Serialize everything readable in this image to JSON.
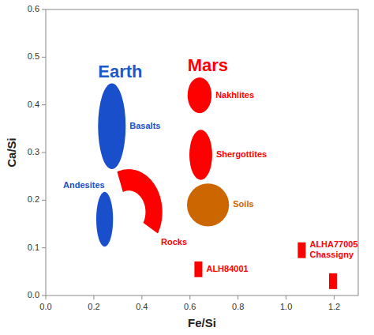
{
  "chart_data": {
    "type": "scatter",
    "xlabel": "Fe/Si",
    "ylabel": "Ca/Si",
    "xlim": [
      0.0,
      1.3
    ],
    "ylim": [
      0.0,
      0.6
    ],
    "xticks": [
      {
        "value": 0.0,
        "label": "0.0"
      },
      0.2,
      0.4,
      0.6,
      0.8,
      {
        "value": 1.0,
        "label": "1.0"
      },
      1.2
    ],
    "yticks": [
      {
        "value": 0.0,
        "label": "0.0"
      },
      0.1,
      0.2,
      0.3,
      0.4,
      0.5,
      0.6
    ],
    "grid": false,
    "annotations": [
      {
        "text": "Earth",
        "color": "#1a5bcc"
      },
      {
        "text": "Mars",
        "color": "red"
      }
    ],
    "regions": [
      {
        "name": "Basalts",
        "group": "Earth",
        "shape": "ellipse",
        "cx": 0.275,
        "cy": 0.355,
        "width": 0.115,
        "height": 0.18,
        "color": "#1a4fcc"
      },
      {
        "name": "Andesites",
        "group": "Earth",
        "shape": "ellipse",
        "cx": 0.245,
        "cy": 0.16,
        "width": 0.07,
        "height": 0.115,
        "color": "#1a4fcc"
      },
      {
        "name": "Nakhlites",
        "group": "Mars",
        "shape": "ellipse",
        "cx": 0.64,
        "cy": 0.42,
        "width": 0.1,
        "height": 0.075,
        "color": "red"
      },
      {
        "name": "Shergottites",
        "group": "Mars",
        "shape": "ellipse",
        "cx": 0.645,
        "cy": 0.295,
        "width": 0.095,
        "height": 0.105,
        "color": "red"
      },
      {
        "name": "Soils",
        "group": "Mars",
        "shape": "ellipse",
        "cx": 0.675,
        "cy": 0.19,
        "width": 0.175,
        "height": 0.09,
        "color": "#cc6600"
      },
      {
        "name": "Rocks",
        "group": "Mars",
        "shape": "arc",
        "cx": 0.345,
        "cy": 0.175,
        "outer_r_x": 0.14,
        "outer_r_y": 0.09,
        "inner_r_x": 0.07,
        "inner_r_y": 0.045,
        "theta1": -30,
        "theta2": 110,
        "color": "red"
      }
    ],
    "points": [
      {
        "label": "ALH84001",
        "x": 0.635,
        "y": 0.055,
        "size": 0.033,
        "color": "red"
      },
      {
        "label": "ALHA77005\nChassigny",
        "x": 1.065,
        "y": 0.095,
        "size": 0.033,
        "color": "red"
      },
      {
        "x": 1.195,
        "y": 0.03,
        "size": 0.033,
        "color": "red"
      }
    ]
  }
}
